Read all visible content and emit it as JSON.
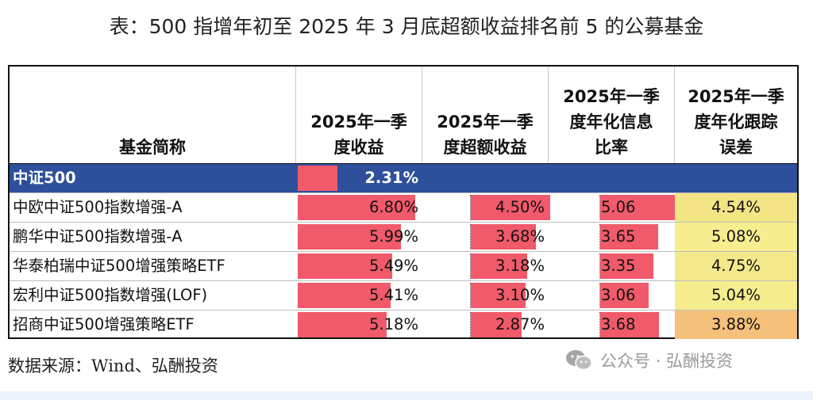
{
  "title": "表：500 指增年初至 2025 年 3 月底超额收益排名前 5 的公募基金",
  "table": {
    "headers": [
      "基金简称",
      "2025年一季\n度收益",
      "2025年一季\n度超额收益",
      "2025年一季\n度年化信息\n比率",
      "2025年一季\n度年化跟踪\n误差"
    ],
    "index_row": {
      "name": "中证500",
      "q1_return": "2.31%",
      "q1_return_value": 2.31
    },
    "rows": [
      {
        "name": "中欧中证500指数增强-A",
        "q1_return": "6.80%",
        "excess": "4.50%",
        "info_ratio": "5.06",
        "tracking_error": "4.54%",
        "q1_return_value": 6.8,
        "excess_value": 4.5,
        "info_ratio_value": 5.06,
        "tracking_error_value": 4.54,
        "te_color": "#f3e586"
      },
      {
        "name": "鹏华中证500指数增强-A",
        "q1_return": "5.99%",
        "excess": "3.68%",
        "info_ratio": "3.65",
        "tracking_error": "5.08%",
        "q1_return_value": 5.99,
        "excess_value": 3.68,
        "info_ratio_value": 3.65,
        "tracking_error_value": 5.08,
        "te_color": "#f6ee8f"
      },
      {
        "name": "华泰柏瑞中证500增强策略ETF",
        "q1_return": "5.49%",
        "excess": "3.18%",
        "info_ratio": "3.35",
        "tracking_error": "4.75%",
        "q1_return_value": 5.49,
        "excess_value": 3.18,
        "info_ratio_value": 3.35,
        "tracking_error_value": 4.75,
        "te_color": "#f3e98a"
      },
      {
        "name": "宏利中证500指数增强(LOF)",
        "q1_return": "5.41%",
        "excess": "3.10%",
        "info_ratio": "3.06",
        "tracking_error": "5.04%",
        "q1_return_value": 5.41,
        "excess_value": 3.1,
        "info_ratio_value": 3.06,
        "tracking_error_value": 5.04,
        "te_color": "#f6ed8e"
      },
      {
        "name": "招商中证500增强策略ETF",
        "q1_return": "5.18%",
        "excess": "2.87%",
        "info_ratio": "3.68",
        "tracking_error": "3.88%",
        "q1_return_value": 5.18,
        "excess_value": 2.87,
        "info_ratio_value": 3.68,
        "tracking_error_value": 3.88,
        "te_color": "#f5c07a"
      }
    ]
  },
  "source": "数据来源：Wind、弘酬投资",
  "watermark": "公众号 · 弘酬投资",
  "colors": {
    "bar": "#f05a6a",
    "index_row": "#2e4f9b"
  }
}
